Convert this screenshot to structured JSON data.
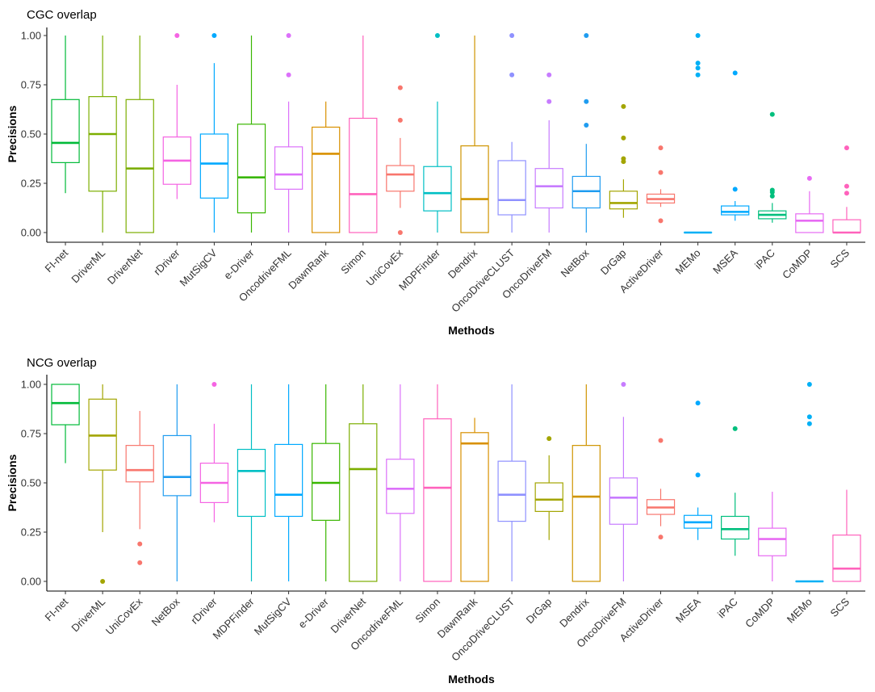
{
  "chart_data": [
    {
      "type": "boxplot",
      "title": "CGC overlap",
      "xlabel": "Methods",
      "ylabel": "Precisions",
      "ylim": [
        0,
        1
      ],
      "yticks": [
        "0.00",
        "0.25",
        "0.50",
        "0.75",
        "1.00"
      ],
      "grid": false,
      "series": [
        {
          "name": "FI-net",
          "color": "#00BA38",
          "min": 0.2,
          "q1": 0.355,
          "median": 0.455,
          "q3": 0.675,
          "max": 1.0,
          "outliers": []
        },
        {
          "name": "DriverML",
          "color": "#7CAE00",
          "min": 0.0,
          "q1": 0.21,
          "median": 0.5,
          "q3": 0.69,
          "max": 1.0,
          "outliers": []
        },
        {
          "name": "DriverNet",
          "color": "#7CAE00",
          "min": 0.0,
          "q1": 0.0,
          "median": 0.325,
          "q3": 0.675,
          "max": 1.0,
          "outliers": []
        },
        {
          "name": "rDriver",
          "color": "#F564E3",
          "min": 0.17,
          "q1": 0.245,
          "median": 0.365,
          "q3": 0.485,
          "max": 0.75,
          "outliers": [
            1.0
          ]
        },
        {
          "name": "MutSigCV",
          "color": "#00A9FF",
          "min": 0.0,
          "q1": 0.175,
          "median": 0.35,
          "q3": 0.5,
          "max": 0.86,
          "outliers": [
            1.0
          ]
        },
        {
          "name": "e-Driver",
          "color": "#39B600",
          "min": 0.0,
          "q1": 0.1,
          "median": 0.28,
          "q3": 0.55,
          "max": 1.0,
          "outliers": []
        },
        {
          "name": "OncodriveFML",
          "color": "#DC71FA",
          "min": 0.0,
          "q1": 0.22,
          "median": 0.295,
          "q3": 0.435,
          "max": 0.665,
          "outliers": [
            0.8,
            1.0
          ]
        },
        {
          "name": "DawnRank",
          "color": "#D89000",
          "min": 0.0,
          "q1": 0.0,
          "median": 0.4,
          "q3": 0.535,
          "max": 0.665,
          "outliers": []
        },
        {
          "name": "Simon",
          "color": "#FF62BC",
          "min": 0.0,
          "q1": 0.0,
          "median": 0.195,
          "q3": 0.58,
          "max": 1.0,
          "outliers": []
        },
        {
          "name": "UniCovEx",
          "color": "#F8766D",
          "min": 0.125,
          "q1": 0.21,
          "median": 0.295,
          "q3": 0.34,
          "max": 0.48,
          "outliers": [
            0.0,
            0.57,
            0.735
          ]
        },
        {
          "name": "MDPFinder",
          "color": "#00BFC4",
          "min": 0.0,
          "q1": 0.11,
          "median": 0.2,
          "q3": 0.335,
          "max": 0.665,
          "outliers": [
            1.0
          ]
        },
        {
          "name": "Dendrix",
          "color": "#CF9400",
          "min": 0.0,
          "q1": 0.0,
          "median": 0.17,
          "q3": 0.44,
          "max": 1.0,
          "outliers": []
        },
        {
          "name": "OncoDriveCLUST",
          "color": "#8F91FF",
          "min": 0.0,
          "q1": 0.09,
          "median": 0.165,
          "q3": 0.365,
          "max": 0.46,
          "outliers": [
            0.8,
            1.0
          ]
        },
        {
          "name": "OncoDriveFM",
          "color": "#C77CFF",
          "min": 0.0,
          "q1": 0.125,
          "median": 0.235,
          "q3": 0.325,
          "max": 0.57,
          "outliers": [
            0.665,
            0.8
          ]
        },
        {
          "name": "NetBox",
          "color": "#1F9CF0",
          "min": 0.0,
          "q1": 0.125,
          "median": 0.21,
          "q3": 0.285,
          "max": 0.45,
          "outliers": [
            0.545,
            0.665,
            1.0
          ]
        },
        {
          "name": "DrGap",
          "color": "#A3A500",
          "min": 0.075,
          "q1": 0.12,
          "median": 0.15,
          "q3": 0.21,
          "max": 0.27,
          "outliers": [
            0.36,
            0.375,
            0.48,
            0.64
          ]
        },
        {
          "name": "ActiveDriver",
          "color": "#F8766D",
          "min": 0.13,
          "q1": 0.15,
          "median": 0.17,
          "q3": 0.195,
          "max": 0.22,
          "outliers": [
            0.06,
            0.305,
            0.43
          ]
        },
        {
          "name": "MEMo",
          "color": "#00B0F6",
          "min": 0.0,
          "q1": 0.0,
          "median": 0.0,
          "q3": 0.0,
          "max": 0.0,
          "outliers": [
            0.8,
            0.835,
            0.86,
            1.0
          ]
        },
        {
          "name": "MSEA",
          "color": "#00A9FF",
          "min": 0.06,
          "q1": 0.09,
          "median": 0.105,
          "q3": 0.135,
          "max": 0.16,
          "outliers": [
            0.22,
            0.81
          ]
        },
        {
          "name": "iPAC",
          "color": "#00BF7D",
          "min": 0.05,
          "q1": 0.07,
          "median": 0.09,
          "q3": 0.11,
          "max": 0.15,
          "outliers": [
            0.185,
            0.205,
            0.215,
            0.6
          ]
        },
        {
          "name": "CoMDP",
          "color": "#E76BF3",
          "min": 0.0,
          "q1": 0.0,
          "median": 0.06,
          "q3": 0.095,
          "max": 0.21,
          "outliers": [
            0.275
          ]
        },
        {
          "name": "SCS",
          "color": "#FF62BC",
          "min": 0.0,
          "q1": 0.0,
          "median": 0.0,
          "q3": 0.065,
          "max": 0.13,
          "outliers": [
            0.2,
            0.235,
            0.43
          ]
        }
      ]
    },
    {
      "type": "boxplot",
      "title": "NCG overlap",
      "xlabel": "Methods",
      "ylabel": "Precisions",
      "ylim": [
        0,
        1
      ],
      "yticks": [
        "0.00",
        "0.25",
        "0.50",
        "0.75",
        "1.00"
      ],
      "grid": false,
      "series": [
        {
          "name": "FI-net",
          "color": "#00BA38",
          "min": 0.6,
          "q1": 0.795,
          "median": 0.905,
          "q3": 1.0,
          "max": 1.0,
          "outliers": []
        },
        {
          "name": "DriverML",
          "color": "#A3A500",
          "min": 0.25,
          "q1": 0.565,
          "median": 0.74,
          "q3": 0.925,
          "max": 1.0,
          "outliers": [
            0.0
          ]
        },
        {
          "name": "UniCovEx",
          "color": "#F8766D",
          "min": 0.265,
          "q1": 0.505,
          "median": 0.565,
          "q3": 0.69,
          "max": 0.865,
          "outliers": [
            0.095,
            0.19
          ]
        },
        {
          "name": "NetBox",
          "color": "#1F9CF0",
          "min": 0.0,
          "q1": 0.435,
          "median": 0.53,
          "q3": 0.74,
          "max": 1.0,
          "outliers": []
        },
        {
          "name": "rDriver",
          "color": "#F564E3",
          "min": 0.3,
          "q1": 0.4,
          "median": 0.5,
          "q3": 0.6,
          "max": 0.8,
          "outliers": [
            1.0
          ]
        },
        {
          "name": "MDPFinder",
          "color": "#00BFC4",
          "min": 0.0,
          "q1": 0.33,
          "median": 0.56,
          "q3": 0.67,
          "max": 1.0,
          "outliers": []
        },
        {
          "name": "MutSigCV",
          "color": "#00A9FF",
          "min": 0.0,
          "q1": 0.33,
          "median": 0.44,
          "q3": 0.695,
          "max": 1.0,
          "outliers": []
        },
        {
          "name": "e-Driver",
          "color": "#39B600",
          "min": 0.0,
          "q1": 0.31,
          "median": 0.5,
          "q3": 0.7,
          "max": 1.0,
          "outliers": []
        },
        {
          "name": "DriverNet",
          "color": "#7CAE00",
          "min": 0.0,
          "q1": 0.0,
          "median": 0.57,
          "q3": 0.8,
          "max": 1.0,
          "outliers": []
        },
        {
          "name": "OncodriveFML",
          "color": "#DC71FA",
          "min": 0.0,
          "q1": 0.345,
          "median": 0.47,
          "q3": 0.62,
          "max": 1.0,
          "outliers": []
        },
        {
          "name": "Simon",
          "color": "#FF62BC",
          "min": 0.0,
          "q1": 0.0,
          "median": 0.475,
          "q3": 0.825,
          "max": 1.0,
          "outliers": []
        },
        {
          "name": "DawnRank",
          "color": "#D89000",
          "min": 0.0,
          "q1": 0.0,
          "median": 0.7,
          "q3": 0.755,
          "max": 0.83,
          "outliers": []
        },
        {
          "name": "OncoDriveCLUST",
          "color": "#8F91FF",
          "min": 0.0,
          "q1": 0.305,
          "median": 0.44,
          "q3": 0.61,
          "max": 1.0,
          "outliers": []
        },
        {
          "name": "DrGap",
          "color": "#A3A500",
          "min": 0.21,
          "q1": 0.355,
          "median": 0.415,
          "q3": 0.5,
          "max": 0.64,
          "outliers": [
            0.725
          ]
        },
        {
          "name": "Dendrix",
          "color": "#CF9400",
          "min": 0.0,
          "q1": 0.0,
          "median": 0.43,
          "q3": 0.69,
          "max": 1.0,
          "outliers": []
        },
        {
          "name": "OncoDriveFM",
          "color": "#C77CFF",
          "min": 0.0,
          "q1": 0.29,
          "median": 0.425,
          "q3": 0.525,
          "max": 0.835,
          "outliers": [
            1.0
          ]
        },
        {
          "name": "ActiveDriver",
          "color": "#F8766D",
          "min": 0.28,
          "q1": 0.34,
          "median": 0.375,
          "q3": 0.415,
          "max": 0.47,
          "outliers": [
            0.225,
            0.715
          ]
        },
        {
          "name": "MSEA",
          "color": "#00A9FF",
          "min": 0.21,
          "q1": 0.27,
          "median": 0.3,
          "q3": 0.335,
          "max": 0.375,
          "outliers": [
            0.54,
            0.905
          ]
        },
        {
          "name": "iPAC",
          "color": "#00BF7D",
          "min": 0.13,
          "q1": 0.215,
          "median": 0.265,
          "q3": 0.33,
          "max": 0.45,
          "outliers": [
            0.775
          ]
        },
        {
          "name": "CoMDP",
          "color": "#E76BF3",
          "min": 0.0,
          "q1": 0.13,
          "median": 0.215,
          "q3": 0.27,
          "max": 0.455,
          "outliers": []
        },
        {
          "name": "MEMo",
          "color": "#00B0F6",
          "min": 0.0,
          "q1": 0.0,
          "median": 0.0,
          "q3": 0.0,
          "max": 0.0,
          "outliers": [
            0.8,
            0.835,
            1.0
          ]
        },
        {
          "name": "SCS",
          "color": "#FF62BC",
          "min": 0.0,
          "q1": 0.0,
          "median": 0.065,
          "q3": 0.235,
          "max": 0.465,
          "outliers": []
        }
      ]
    }
  ]
}
